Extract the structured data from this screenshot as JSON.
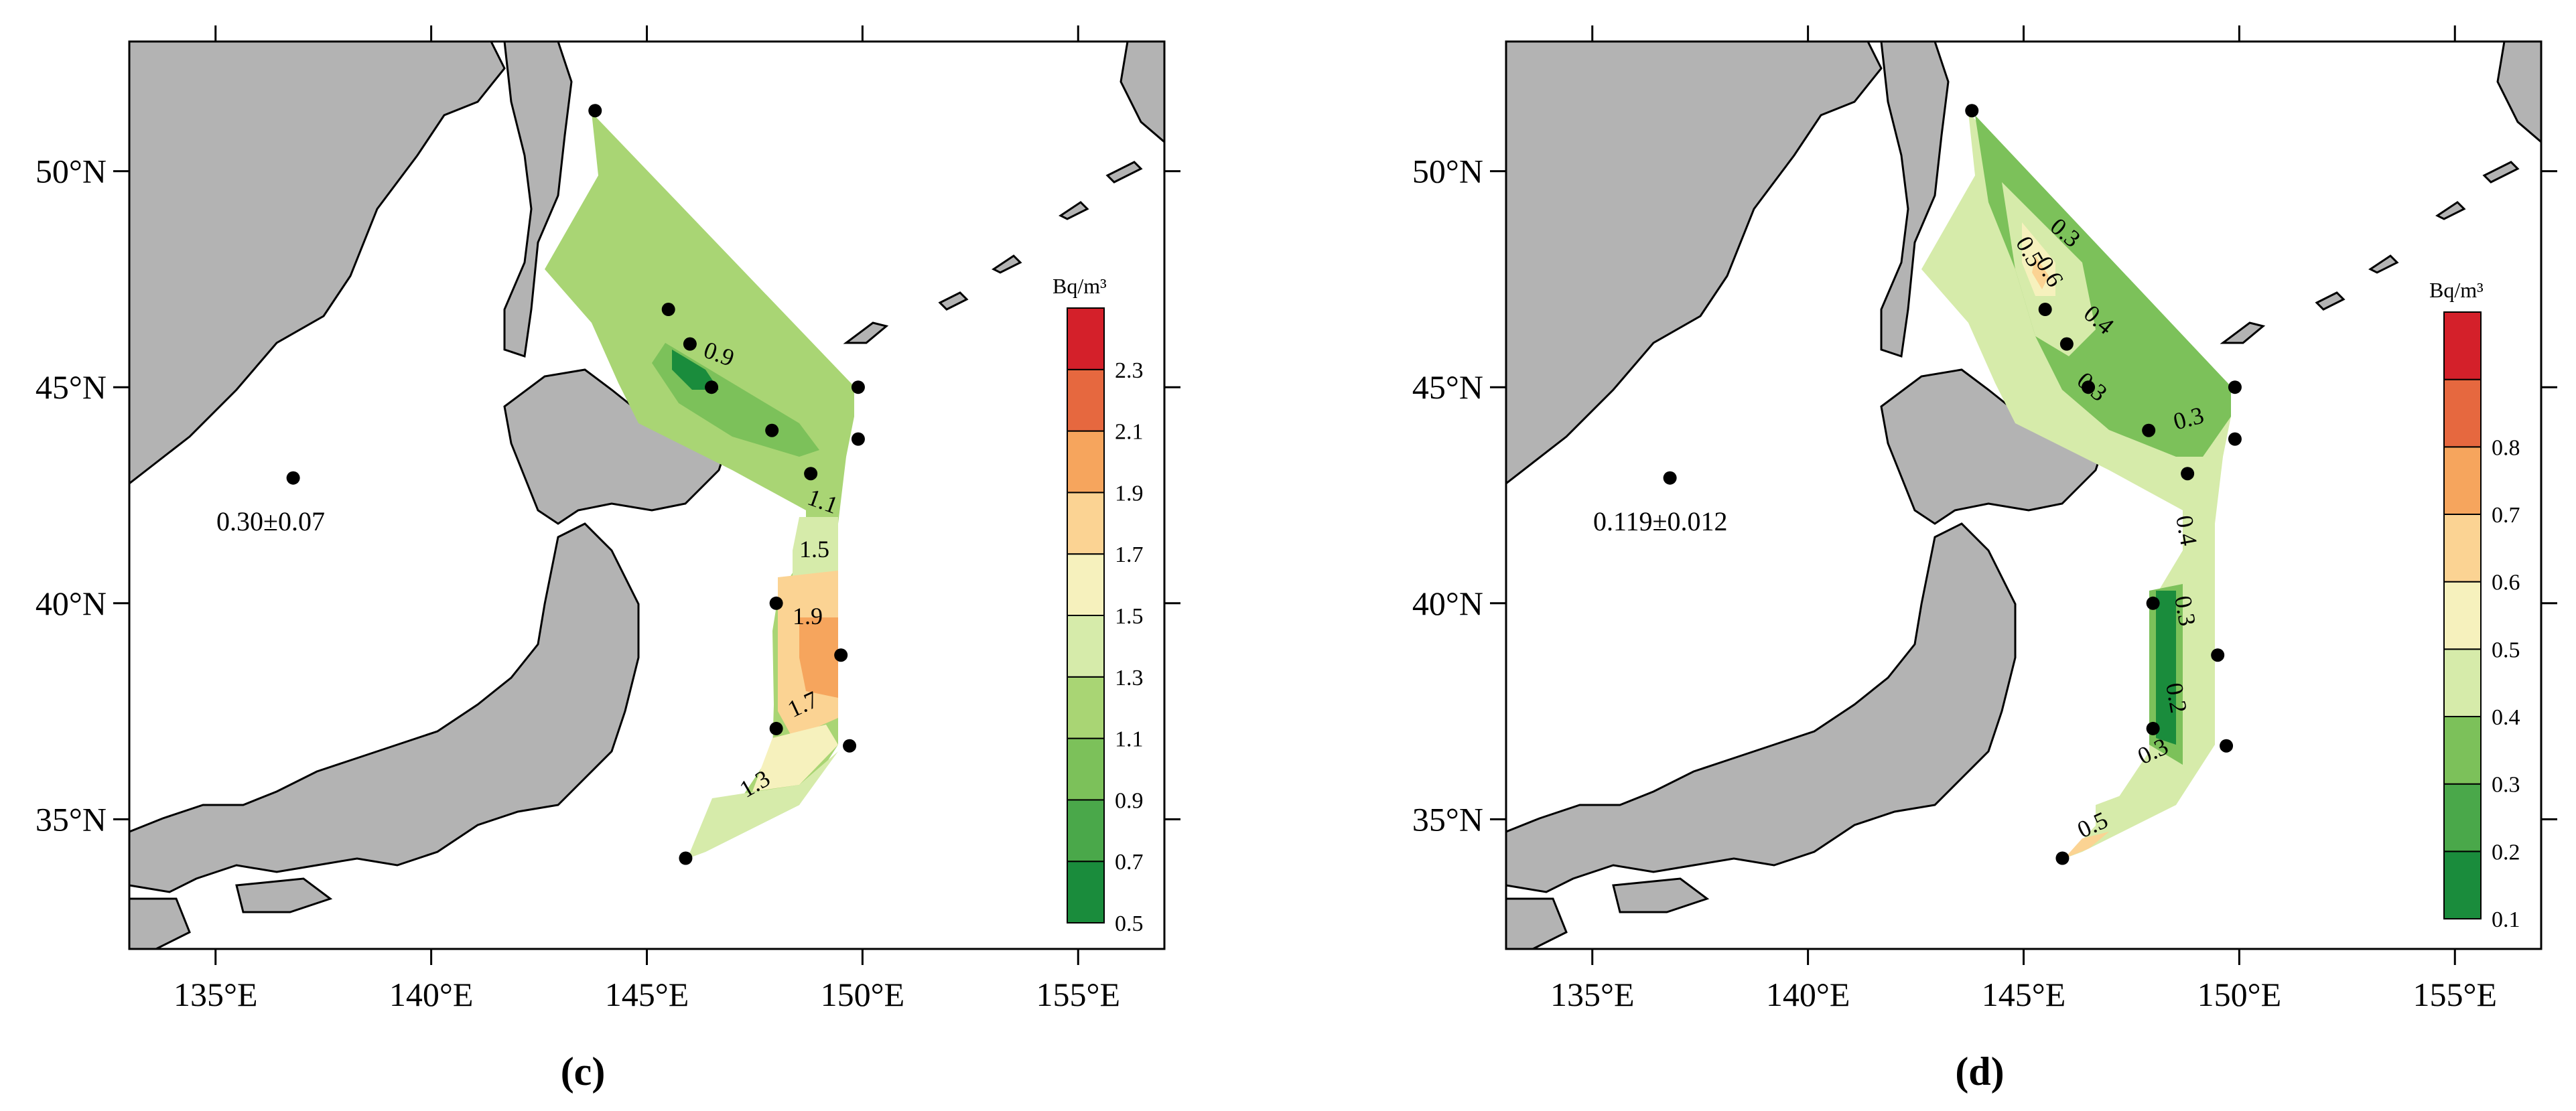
{
  "panels": [
    {
      "label": "(c)",
      "annotation": "0.30±0.07",
      "colorbar": {
        "unit": "Bq/m³",
        "ticks": [
          "0.5",
          "0.7",
          "0.9",
          "1.1",
          "1.3",
          "1.5",
          "1.7",
          "1.9",
          "2.1",
          "2.3"
        ],
        "colors": [
          "#1a8c3c",
          "#4aa84a",
          "#7cc15a",
          "#a9d574",
          "#d6ebaa",
          "#f6f1bd",
          "#fbd393",
          "#f6a55d",
          "#e6683f",
          "#d4202a"
        ]
      },
      "contour_labels": [
        "0.9",
        "1.1",
        "1.5",
        "1.9",
        "1.7",
        "1.3"
      ],
      "x_ticks": [
        "135°E",
        "140°E",
        "145°E",
        "150°E",
        "155°E"
      ],
      "y_ticks": [
        "50°N",
        "45°N",
        "40°N",
        "35°N"
      ]
    },
    {
      "label": "(d)",
      "annotation": "0.119±0.012",
      "colorbar": {
        "unit": "Bq/m³",
        "ticks": [
          "0.1",
          "0.2",
          "0.3",
          "0.4",
          "0.5",
          "0.6",
          "0.7",
          "0.8"
        ],
        "colors": [
          "#1a8c3c",
          "#4aa84a",
          "#7cc15a",
          "#d6ebaa",
          "#f6f1bd",
          "#fbd393",
          "#f6a55d",
          "#e6683f",
          "#d4202a"
        ]
      },
      "contour_labels": [
        "0.3",
        "0.5",
        "0.6",
        "0.4",
        "0.3",
        "0.3",
        "0.4",
        "0.3",
        "0.2",
        "0.3",
        "0.5"
      ],
      "x_ticks": [
        "135°E",
        "140°E",
        "145°E",
        "150°E",
        "155°E"
      ],
      "y_ticks": [
        "50°N",
        "45°N",
        "40°N",
        "35°N"
      ]
    }
  ],
  "stations": [
    {
      "lon": 143.8,
      "lat": 51.4
    },
    {
      "lon": 145.5,
      "lat": 46.8
    },
    {
      "lon": 146.0,
      "lat": 46.0
    },
    {
      "lon": 146.5,
      "lat": 45.0
    },
    {
      "lon": 147.9,
      "lat": 44.0
    },
    {
      "lon": 148.8,
      "lat": 43.0
    },
    {
      "lon": 149.9,
      "lat": 45.0
    },
    {
      "lon": 149.9,
      "lat": 43.8
    },
    {
      "lon": 148.0,
      "lat": 40.0
    },
    {
      "lon": 149.5,
      "lat": 38.8
    },
    {
      "lon": 148.0,
      "lat": 37.1
    },
    {
      "lon": 149.7,
      "lat": 36.7
    },
    {
      "lon": 145.9,
      "lat": 34.1
    },
    {
      "lon": 136.8,
      "lat": 42.9
    }
  ]
}
